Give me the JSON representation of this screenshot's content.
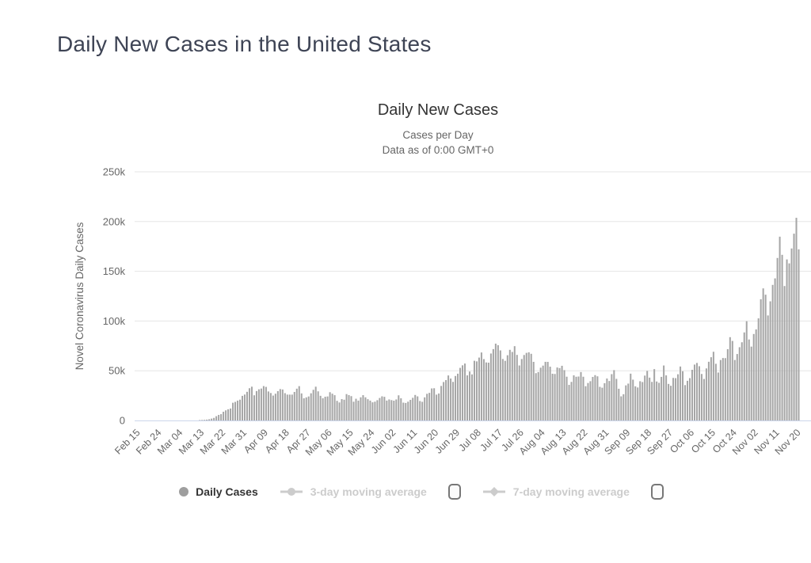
{
  "page": {
    "title": "Daily New Cases in the United States"
  },
  "chart": {
    "title": "Daily New Cases",
    "subtitle1": "Cases per Day",
    "subtitle2": "Data as of 0:00 GMT+0",
    "y_axis_title": "Novel Coronavirus Daily Cases",
    "legend": [
      {
        "label": "Daily Cases",
        "marker": "circle",
        "active": true,
        "has_box": false
      },
      {
        "label": "3-day moving average",
        "marker": "line-circle",
        "active": false,
        "has_box": true
      },
      {
        "label": "7-day moving average",
        "marker": "line-diamond",
        "active": false,
        "has_box": true
      }
    ],
    "colors": {
      "bar": "#a6a6a6",
      "grid": "#e6e6e6",
      "axis_line": "#ccd6eb",
      "tick_text": "#666666",
      "title": "#333333",
      "subtitle": "#666666",
      "page_title": "#3e4455",
      "legend_active": "#333333",
      "legend_disabled": "#cccccc",
      "legend_marker_active": "#9e9e9e"
    }
  },
  "chart_data": {
    "type": "bar",
    "title": "Daily New Cases",
    "subtitle": "Cases per Day — Data as of 0:00 GMT+0",
    "xlabel": "",
    "ylabel": "Novel Coronavirus Daily Cases",
    "ylim": [
      0,
      250000
    ],
    "ytick_values": [
      0,
      50000,
      100000,
      150000,
      200000,
      250000
    ],
    "ytick_labels": [
      "0",
      "50k",
      "100k",
      "150k",
      "200k",
      "250k"
    ],
    "grid": true,
    "legend_position": "bottom",
    "x_start_label": "Feb 15",
    "x_interval_days": 1,
    "x_tick_every": 9,
    "x_tick_labels": [
      "Feb 15",
      "Feb 24",
      "Mar 04",
      "Mar 13",
      "Mar 22",
      "Mar 31",
      "Apr 09",
      "Apr 18",
      "Apr 27",
      "May 06",
      "May 15",
      "May 24",
      "Jun 02",
      "Jun 11",
      "Jun 20",
      "Jun 29",
      "Jul 08",
      "Jul 17",
      "Jul 26",
      "Aug 04",
      "Aug 13",
      "Aug 22",
      "Aug 31",
      "Sep 09",
      "Sep 18",
      "Sep 27",
      "Oct 06",
      "Oct 15",
      "Oct 24",
      "Nov 02",
      "Nov 11",
      "Nov 20"
    ],
    "series_name": "Daily Cases",
    "values": [
      0,
      0,
      0,
      1,
      0,
      0,
      2,
      1,
      0,
      6,
      1,
      0,
      6,
      3,
      8,
      6,
      23,
      19,
      33,
      77,
      59,
      105,
      95,
      66,
      291,
      230,
      291,
      414,
      514,
      610,
      852,
      1237,
      1885,
      2606,
      4302,
      5594,
      6343,
      8789,
      10168,
      11236,
      12038,
      17821,
      18695,
      19979,
      20920,
      24742,
      26063,
      28819,
      32425,
      33964,
      25316,
      29595,
      31344,
      32084,
      34575,
      33774,
      29164,
      27620,
      25023,
      26922,
      29468,
      31577,
      31148,
      27478,
      26018,
      25995,
      25985,
      28675,
      31967,
      34519,
      27209,
      22297,
      23196,
      24132,
      27326,
      30833,
      33955,
      29288,
      24800,
      22335,
      23841,
      24128,
      28420,
      26906,
      25426,
      19731,
      18106,
      21467,
      20869,
      26513,
      25508,
      24487,
      18873,
      21841,
      19970,
      23285,
      25434,
      23290,
      21395,
      19989,
      18263,
      18910,
      20392,
      22603,
      24266,
      23800,
      20007,
      21140,
      20461,
      19913,
      21140,
      25290,
      22303,
      17919,
      17598,
      18908,
      20720,
      22800,
      25640,
      24240,
      19543,
      18781,
      23243,
      26824,
      27762,
      32218,
      32411,
      25979,
      27140,
      34720,
      38672,
      40588,
      45255,
      42161,
      38800,
      44734,
      47050,
      52898,
      55442,
      57236,
      45343,
      49199,
      46329,
      60021,
      59430,
      63246,
      68366,
      61719,
      58349,
      58114,
      67326,
      71750,
      77255,
      75697,
      70450,
      61849,
      59956,
      65594,
      71034,
      68900,
      74710,
      65965,
      55301,
      61795,
      65829,
      67974,
      68527,
      67023,
      58947,
      47576,
      48690,
      53064,
      55148,
      58953,
      58908,
      54094,
      46996,
      46754,
      53265,
      52671,
      54980,
      50611,
      44023,
      35777,
      38790,
      45387,
      43957,
      44195,
      48693,
      43968,
      34463,
      37667,
      39483,
      43772,
      45578,
      44394,
      33805,
      32946,
      37462,
      42174,
      39705,
      46577,
      50618,
      41830,
      31900,
      24257,
      26396,
      35286,
      37069,
      47074,
      41037,
      34319,
      33181,
      39461,
      38672,
      45110,
      49835,
      43091,
      38796,
      51632,
      39190,
      37858,
      43832,
      55277,
      45341,
      36757,
      34904,
      42798,
      42569,
      46464,
      54247,
      49501,
      35584,
      39883,
      42576,
      50971,
      56191,
      57828,
      54566,
      46766,
      41755,
      52333,
      59031,
      63603,
      69079,
      57007,
      48210,
      60789,
      62807,
      62676,
      71671,
      83757,
      79963,
      60807,
      66798,
      73663,
      78625,
      88521,
      99784,
      81433,
      74276,
      86949,
      91530,
      102657,
      121888,
      132797,
      126480,
      105600,
      119801,
      136325,
      142860,
      163402,
      184813,
      166555,
      135187,
      161934,
      157950,
      172935,
      187833,
      203787,
      172057
    ]
  }
}
